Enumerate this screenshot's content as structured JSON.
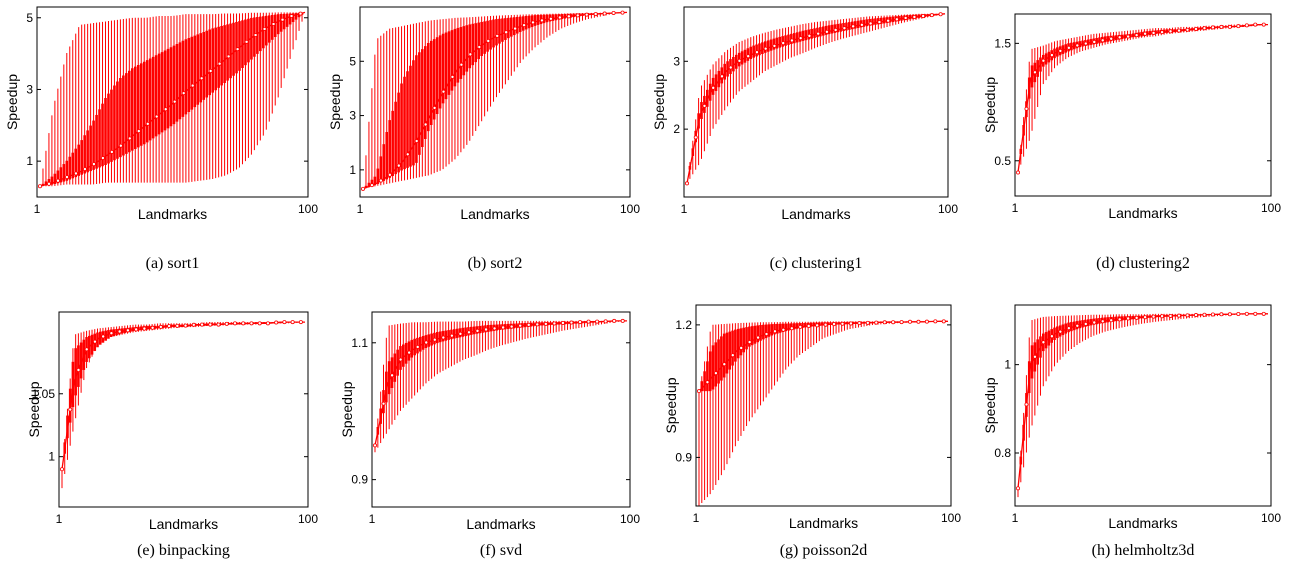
{
  "chart_data": [
    {
      "type": "line",
      "caption": "(a) sort1",
      "xlabel": "Landmarks",
      "ylabel": "Speedup",
      "xlim": [
        1,
        100
      ],
      "xticks": [
        1,
        100
      ],
      "ylim": [
        0,
        5.3
      ],
      "yticks": [
        1,
        3,
        5
      ],
      "mean": [
        0.3,
        0.4,
        0.55,
        0.7,
        0.9,
        1.15,
        1.4,
        1.7,
        2.0,
        2.3,
        2.6,
        2.95,
        3.25,
        3.55,
        3.85,
        4.15,
        4.45,
        4.7,
        4.9,
        5.05,
        5.15
      ],
      "q_low": [
        0.3,
        0.35,
        0.45,
        0.6,
        0.75,
        0.9,
        1.1,
        1.3,
        1.5,
        1.75,
        2.0,
        2.3,
        2.6,
        2.9,
        3.2,
        3.5,
        3.85,
        4.2,
        4.55,
        4.85,
        5.15
      ],
      "q_high": [
        0.3,
        0.6,
        1.0,
        1.5,
        2.1,
        2.8,
        3.3,
        3.6,
        3.8,
        4.0,
        4.2,
        4.4,
        4.55,
        4.7,
        4.8,
        4.9,
        5.0,
        5.05,
        5.1,
        5.12,
        5.15
      ],
      "w_low": [
        0.3,
        0.3,
        0.35,
        0.35,
        0.35,
        0.4,
        0.4,
        0.4,
        0.4,
        0.4,
        0.4,
        0.4,
        0.45,
        0.5,
        0.6,
        0.8,
        1.2,
        1.8,
        2.8,
        4.0,
        5.15
      ],
      "w_high": [
        0.3,
        2.5,
        4.0,
        4.8,
        4.85,
        4.9,
        4.95,
        5.0,
        5.0,
        5.05,
        5.05,
        5.1,
        5.1,
        5.1,
        5.12,
        5.12,
        5.14,
        5.14,
        5.15,
        5.15,
        5.15
      ]
    },
    {
      "type": "line",
      "caption": "(b) sort2",
      "xlabel": "Landmarks",
      "ylabel": "Speedup",
      "xlim": [
        1,
        100
      ],
      "xticks": [
        1,
        100
      ],
      "ylim": [
        0,
        7.0
      ],
      "yticks": [
        1,
        3,
        5
      ],
      "mean": [
        0.3,
        0.5,
        0.8,
        1.3,
        2.0,
        2.9,
        3.8,
        4.6,
        5.2,
        5.6,
        5.9,
        6.1,
        6.3,
        6.45,
        6.55,
        6.62,
        6.68,
        6.72,
        6.75,
        6.78,
        6.8
      ],
      "q_low": [
        0.3,
        0.45,
        0.7,
        1.0,
        1.2,
        2.5,
        3.4,
        4.1,
        4.7,
        5.2,
        5.55,
        5.85,
        6.1,
        6.3,
        6.45,
        6.55,
        6.63,
        6.7,
        6.74,
        6.77,
        6.8
      ],
      "q_high": [
        0.3,
        0.8,
        2.8,
        4.3,
        5.2,
        5.7,
        6.0,
        6.2,
        6.35,
        6.45,
        6.55,
        6.6,
        6.65,
        6.7,
        6.72,
        6.74,
        6.76,
        6.77,
        6.78,
        6.79,
        6.8
      ],
      "w_low": [
        0.3,
        0.4,
        0.5,
        0.6,
        0.7,
        0.8,
        1.0,
        1.4,
        2.0,
        2.8,
        3.6,
        4.3,
        5.0,
        5.5,
        5.9,
        6.2,
        6.4,
        6.55,
        6.65,
        6.75,
        6.8
      ],
      "w_high": [
        0.3,
        5.8,
        6.2,
        6.3,
        6.4,
        6.5,
        6.55,
        6.6,
        6.62,
        6.65,
        6.68,
        6.7,
        6.72,
        6.74,
        6.75,
        6.76,
        6.77,
        6.78,
        6.79,
        6.8,
        6.8
      ]
    },
    {
      "type": "line",
      "caption": "(c) clustering1",
      "xlabel": "Landmarks",
      "ylabel": "Speedup",
      "xlim": [
        1,
        100
      ],
      "xticks": [
        1,
        100
      ],
      "ylim": [
        1.0,
        3.8
      ],
      "yticks": [
        2,
        3
      ],
      "mean": [
        1.2,
        2.2,
        2.6,
        2.85,
        3.0,
        3.1,
        3.18,
        3.24,
        3.3,
        3.35,
        3.4,
        3.44,
        3.48,
        3.52,
        3.55,
        3.58,
        3.61,
        3.64,
        3.66,
        3.68,
        3.7
      ],
      "q_low": [
        1.2,
        2.1,
        2.5,
        2.75,
        2.92,
        3.04,
        3.12,
        3.19,
        3.25,
        3.3,
        3.35,
        3.4,
        3.44,
        3.48,
        3.52,
        3.55,
        3.58,
        3.61,
        3.64,
        3.67,
        3.7
      ],
      "q_high": [
        1.2,
        2.35,
        2.75,
        2.98,
        3.12,
        3.22,
        3.29,
        3.35,
        3.4,
        3.45,
        3.49,
        3.53,
        3.56,
        3.59,
        3.62,
        3.64,
        3.66,
        3.68,
        3.69,
        3.7,
        3.7
      ],
      "w_low": [
        1.2,
        1.5,
        2.0,
        2.3,
        2.55,
        2.7,
        2.85,
        2.95,
        3.05,
        3.12,
        3.2,
        3.27,
        3.33,
        3.38,
        3.43,
        3.48,
        3.53,
        3.58,
        3.62,
        3.66,
        3.7
      ],
      "w_high": [
        1.2,
        2.6,
        2.95,
        3.15,
        3.28,
        3.36,
        3.42,
        3.47,
        3.51,
        3.55,
        3.58,
        3.6,
        3.62,
        3.64,
        3.66,
        3.67,
        3.68,
        3.69,
        3.7,
        3.7,
        3.7
      ]
    },
    {
      "type": "line",
      "caption": "(d) clustering2",
      "xlabel": "Landmarks",
      "ylabel": "Speedup",
      "xlim": [
        1,
        100
      ],
      "xticks": [
        1,
        100
      ],
      "ylim": [
        0.2,
        1.75
      ],
      "yticks": [
        0.5,
        1.5
      ],
      "mean": [
        0.4,
        1.2,
        1.35,
        1.42,
        1.46,
        1.49,
        1.51,
        1.53,
        1.55,
        1.56,
        1.58,
        1.59,
        1.6,
        1.61,
        1.62,
        1.63,
        1.64,
        1.64,
        1.65,
        1.66,
        1.66
      ],
      "q_low": [
        0.4,
        1.1,
        1.3,
        1.38,
        1.43,
        1.47,
        1.49,
        1.51,
        1.53,
        1.55,
        1.56,
        1.58,
        1.59,
        1.6,
        1.61,
        1.62,
        1.63,
        1.64,
        1.64,
        1.65,
        1.66
      ],
      "q_high": [
        0.4,
        1.3,
        1.4,
        1.46,
        1.5,
        1.52,
        1.54,
        1.56,
        1.57,
        1.58,
        1.6,
        1.61,
        1.62,
        1.62,
        1.63,
        1.64,
        1.64,
        1.65,
        1.65,
        1.66,
        1.66
      ],
      "w_low": [
        0.4,
        0.7,
        1.15,
        1.3,
        1.38,
        1.43,
        1.46,
        1.49,
        1.51,
        1.53,
        1.55,
        1.56,
        1.58,
        1.59,
        1.6,
        1.61,
        1.62,
        1.63,
        1.64,
        1.65,
        1.66
      ],
      "w_high": [
        0.4,
        1.45,
        1.48,
        1.52,
        1.54,
        1.56,
        1.58,
        1.59,
        1.6,
        1.61,
        1.62,
        1.63,
        1.63,
        1.64,
        1.64,
        1.65,
        1.65,
        1.66,
        1.66,
        1.66,
        1.66
      ]
    },
    {
      "type": "line",
      "caption": "(e) binpacking",
      "xlabel": "Landmarks",
      "ylabel": "Speedup",
      "xlim": [
        1,
        100
      ],
      "xticks": [
        1,
        100
      ],
      "ylim": [
        0.96,
        1.115
      ],
      "yticks": [
        1,
        1.05
      ],
      "mean": [
        0.99,
        1.06,
        1.085,
        1.094,
        1.098,
        1.1,
        1.101,
        1.102,
        1.103,
        1.104,
        1.104,
        1.105,
        1.105,
        1.105,
        1.106,
        1.106,
        1.106,
        1.106,
        1.107,
        1.107,
        1.107
      ],
      "q_low": [
        0.99,
        1.045,
        1.075,
        1.088,
        1.095,
        1.098,
        1.1,
        1.101,
        1.102,
        1.103,
        1.103,
        1.104,
        1.104,
        1.105,
        1.105,
        1.105,
        1.106,
        1.106,
        1.106,
        1.107,
        1.107
      ],
      "q_high": [
        0.99,
        1.085,
        1.095,
        1.099,
        1.101,
        1.102,
        1.103,
        1.104,
        1.104,
        1.105,
        1.105,
        1.105,
        1.106,
        1.106,
        1.106,
        1.106,
        1.107,
        1.107,
        1.107,
        1.107,
        1.107
      ],
      "w_low": [
        0.975,
        1.025,
        1.07,
        1.09,
        1.095,
        1.097,
        1.099,
        1.1,
        1.101,
        1.102,
        1.103,
        1.103,
        1.104,
        1.104,
        1.105,
        1.105,
        1.105,
        1.106,
        1.106,
        1.106,
        1.107
      ],
      "w_high": [
        0.99,
        1.097,
        1.1,
        1.102,
        1.103,
        1.104,
        1.105,
        1.105,
        1.106,
        1.106,
        1.106,
        1.106,
        1.107,
        1.107,
        1.107,
        1.107,
        1.107,
        1.107,
        1.107,
        1.107,
        1.107
      ]
    },
    {
      "type": "line",
      "caption": "(f) svd",
      "xlabel": "Landmarks",
      "ylabel": "Speedup",
      "xlim": [
        1,
        100
      ],
      "xticks": [
        1,
        100
      ],
      "ylim": [
        0.86,
        1.145
      ],
      "yticks": [
        0.9,
        1.1
      ],
      "mean": [
        0.95,
        1.04,
        1.075,
        1.09,
        1.1,
        1.106,
        1.11,
        1.114,
        1.117,
        1.12,
        1.122,
        1.124,
        1.126,
        1.127,
        1.128,
        1.129,
        1.13,
        1.131,
        1.131,
        1.132,
        1.132
      ],
      "q_low": [
        0.95,
        1.02,
        1.06,
        1.08,
        1.092,
        1.1,
        1.105,
        1.109,
        1.113,
        1.116,
        1.119,
        1.121,
        1.123,
        1.125,
        1.126,
        1.127,
        1.128,
        1.129,
        1.13,
        1.131,
        1.132
      ],
      "q_high": [
        0.95,
        1.07,
        1.095,
        1.105,
        1.111,
        1.116,
        1.119,
        1.122,
        1.124,
        1.126,
        1.127,
        1.128,
        1.129,
        1.13,
        1.13,
        1.131,
        1.131,
        1.131,
        1.132,
        1.132,
        1.132
      ],
      "w_low": [
        0.94,
        0.97,
        1.0,
        1.02,
        1.04,
        1.055,
        1.065,
        1.075,
        1.082,
        1.09,
        1.096,
        1.101,
        1.106,
        1.11,
        1.114,
        1.118,
        1.121,
        1.124,
        1.127,
        1.13,
        1.132
      ],
      "w_high": [
        0.95,
        1.125,
        1.128,
        1.13,
        1.13,
        1.131,
        1.131,
        1.131,
        1.132,
        1.132,
        1.132,
        1.132,
        1.132,
        1.132,
        1.132,
        1.132,
        1.132,
        1.132,
        1.132,
        1.132,
        1.132
      ]
    },
    {
      "type": "line",
      "caption": "(g) poisson2d",
      "xlabel": "Landmarks",
      "ylabel": "Speedup",
      "xlim": [
        1,
        100
      ],
      "xticks": [
        1,
        100
      ],
      "ylim": [
        0.79,
        1.245
      ],
      "yticks": [
        0.9,
        1.2
      ],
      "mean": [
        1.05,
        1.08,
        1.11,
        1.14,
        1.16,
        1.175,
        1.185,
        1.19,
        1.195,
        1.198,
        1.2,
        1.202,
        1.203,
        1.204,
        1.205,
        1.206,
        1.206,
        1.207,
        1.207,
        1.208,
        1.208
      ],
      "q_low": [
        1.05,
        1.05,
        1.08,
        1.12,
        1.15,
        1.165,
        1.178,
        1.186,
        1.192,
        1.196,
        1.199,
        1.201,
        1.202,
        1.203,
        1.204,
        1.205,
        1.206,
        1.206,
        1.207,
        1.207,
        1.208
      ],
      "q_high": [
        1.05,
        1.15,
        1.18,
        1.19,
        1.196,
        1.2,
        1.202,
        1.203,
        1.204,
        1.205,
        1.206,
        1.206,
        1.207,
        1.207,
        1.207,
        1.208,
        1.208,
        1.208,
        1.208,
        1.208,
        1.208
      ],
      "w_low": [
        0.79,
        0.82,
        0.87,
        0.93,
        0.98,
        1.02,
        1.06,
        1.1,
        1.13,
        1.15,
        1.17,
        1.18,
        1.19,
        1.195,
        1.2,
        1.202,
        1.204,
        1.205,
        1.206,
        1.207,
        1.208
      ],
      "w_high": [
        1.05,
        1.2,
        1.202,
        1.204,
        1.205,
        1.206,
        1.206,
        1.207,
        1.207,
        1.207,
        1.208,
        1.208,
        1.208,
        1.208,
        1.208,
        1.208,
        1.208,
        1.208,
        1.208,
        1.208,
        1.208
      ]
    },
    {
      "type": "line",
      "caption": "(h) helmholtz3d",
      "xlabel": "Landmarks",
      "ylabel": "Speedup",
      "xlim": [
        1,
        100
      ],
      "xticks": [
        1,
        100
      ],
      "ylim": [
        0.68,
        1.135
      ],
      "yticks": [
        0.8,
        1.0
      ],
      "mean": [
        0.72,
        1.0,
        1.05,
        1.07,
        1.082,
        1.09,
        1.095,
        1.099,
        1.102,
        1.105,
        1.107,
        1.109,
        1.11,
        1.111,
        1.112,
        1.113,
        1.114,
        1.114,
        1.115,
        1.115,
        1.115
      ],
      "q_low": [
        0.72,
        0.96,
        1.03,
        1.058,
        1.073,
        1.083,
        1.09,
        1.095,
        1.099,
        1.102,
        1.105,
        1.107,
        1.109,
        1.11,
        1.111,
        1.112,
        1.113,
        1.114,
        1.114,
        1.115,
        1.115
      ],
      "q_high": [
        0.72,
        1.04,
        1.07,
        1.085,
        1.095,
        1.1,
        1.104,
        1.107,
        1.109,
        1.11,
        1.111,
        1.112,
        1.113,
        1.113,
        1.114,
        1.114,
        1.114,
        1.115,
        1.115,
        1.115,
        1.115
      ],
      "w_low": [
        0.7,
        0.85,
        0.95,
        1.0,
        1.03,
        1.05,
        1.065,
        1.075,
        1.082,
        1.088,
        1.093,
        1.097,
        1.1,
        1.103,
        1.106,
        1.108,
        1.11,
        1.112,
        1.113,
        1.114,
        1.115
      ],
      "w_high": [
        0.72,
        1.1,
        1.108,
        1.11,
        1.111,
        1.112,
        1.113,
        1.113,
        1.114,
        1.114,
        1.114,
        1.115,
        1.115,
        1.115,
        1.115,
        1.115,
        1.115,
        1.115,
        1.115,
        1.115,
        1.115
      ]
    }
  ]
}
